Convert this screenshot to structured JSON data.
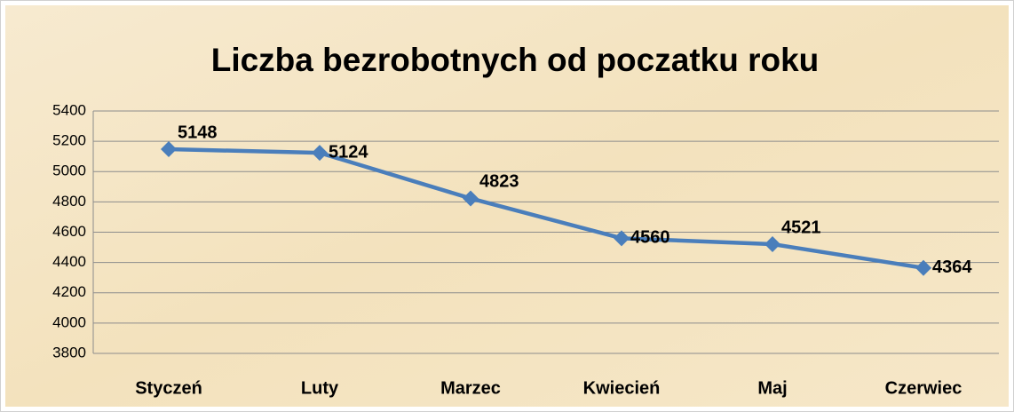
{
  "chart_data": {
    "type": "line",
    "title": "Liczba bezrobotnych od poczatku roku",
    "categories": [
      "Styczeń",
      "Luty",
      "Marzec",
      "Kwiecień",
      "Maj",
      "Czerwiec"
    ],
    "series": [
      {
        "name": "Liczba bezrobotnych",
        "color": "#4a7ebb",
        "values": [
          5148,
          5124,
          4823,
          4560,
          4521,
          4364
        ]
      }
    ],
    "ylim": [
      3800,
      5400
    ],
    "yticks": [
      3800,
      4000,
      4200,
      4400,
      4600,
      4800,
      5000,
      5200,
      5400
    ],
    "grid": true
  }
}
